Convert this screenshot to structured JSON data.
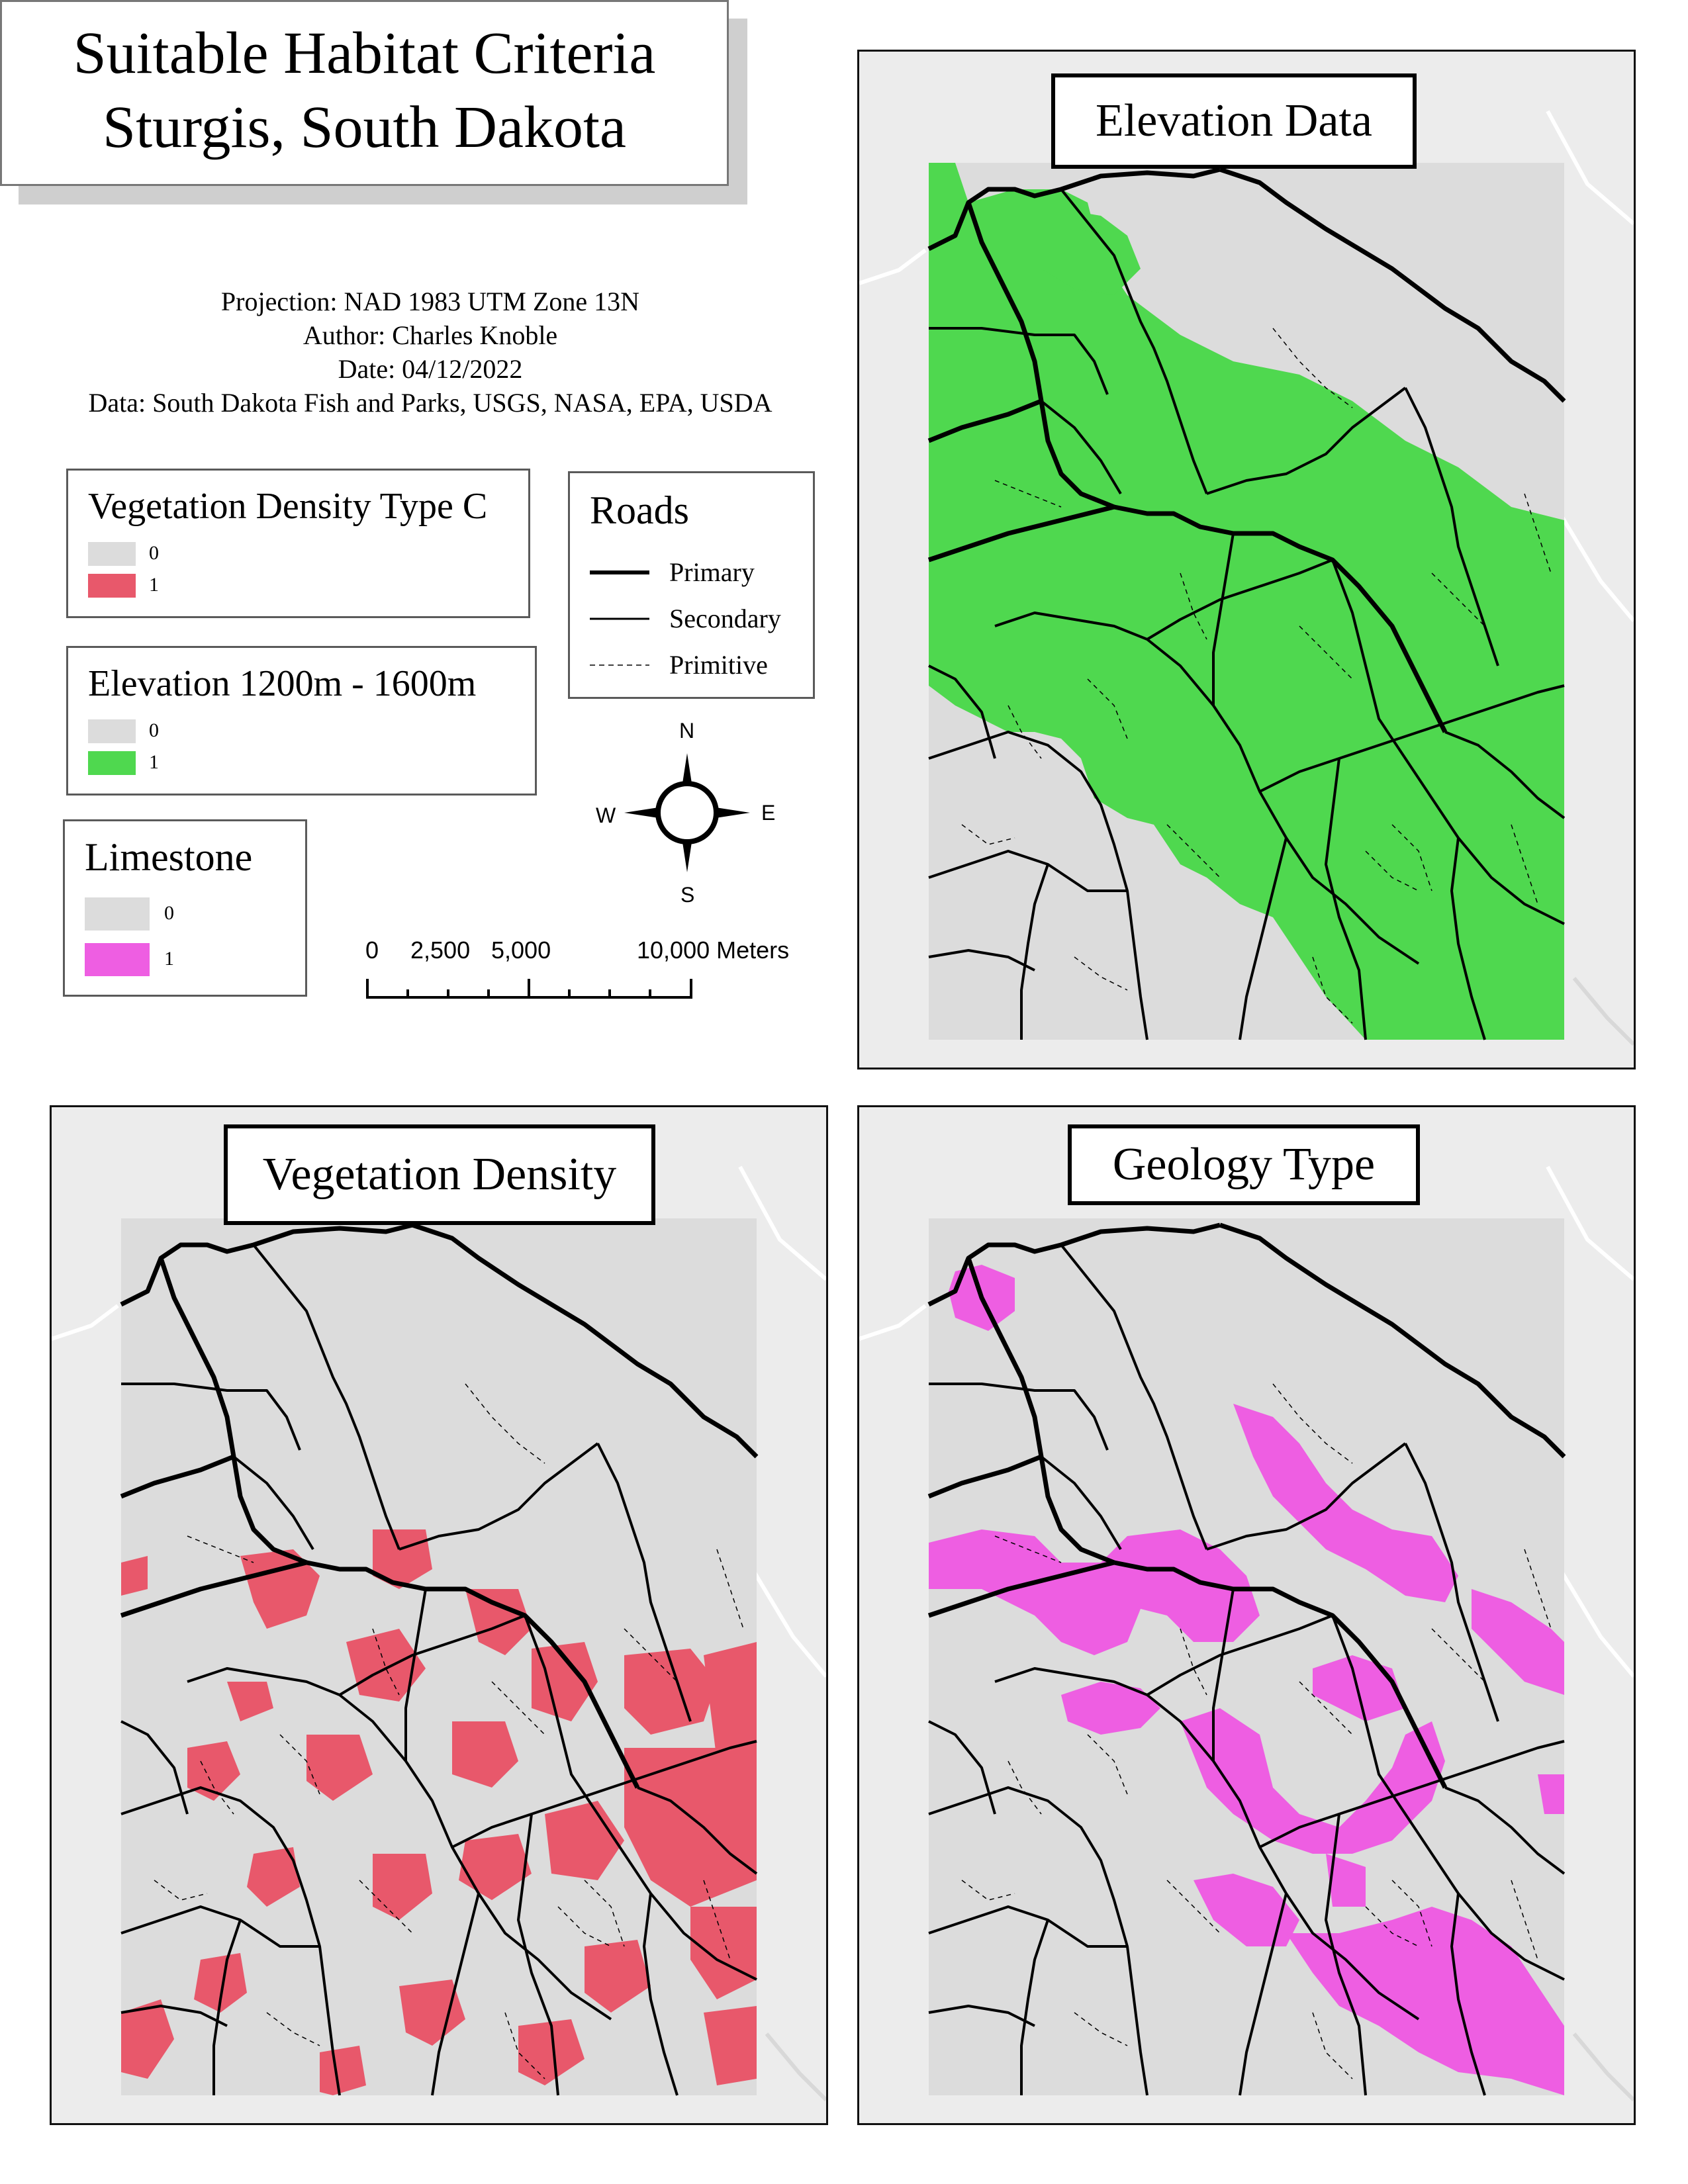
{
  "title": {
    "line1": "Suitable Habitat Criteria",
    "line2": "Sturgis, South Dakota"
  },
  "meta": {
    "projection": "Projection: NAD 1983 UTM Zone 13N",
    "author": "Author: Charles Knoble",
    "date": "Date: 04/12/2022",
    "data": "Data: South Dakota Fish and Parks, USGS, NASA, EPA, USDA"
  },
  "legends": {
    "vegetation": {
      "title": "Vegetation Density Type C",
      "items": [
        {
          "label": "0",
          "color": "#dcdcdc"
        },
        {
          "label": "1",
          "color": "#e8586b"
        }
      ]
    },
    "elevation": {
      "title": "Elevation 1200m - 1600m",
      "items": [
        {
          "label": "0",
          "color": "#dcdcdc"
        },
        {
          "label": "1",
          "color": "#4fd84f"
        }
      ]
    },
    "limestone": {
      "title": "Limestone",
      "items": [
        {
          "label": "0",
          "color": "#dcdcdc"
        },
        {
          "label": "1",
          "color": "#ee5ee2"
        }
      ]
    },
    "roads": {
      "title": "Roads",
      "items": [
        {
          "label": "Primary",
          "style": "thick"
        },
        {
          "label": "Secondary",
          "style": "thin"
        },
        {
          "label": "Primitive",
          "style": "dashed"
        }
      ]
    }
  },
  "north_arrow": {
    "n": "N",
    "s": "S",
    "e": "E",
    "w": "W"
  },
  "scale_bar": {
    "labels": [
      "0",
      "2,500",
      "5,000",
      "10,000 Meters"
    ]
  },
  "panels": {
    "elevation": {
      "title": "Elevation Data",
      "fill": "#4fd84f"
    },
    "vegetation": {
      "title": "Vegetation Density",
      "fill": "#e8586b"
    },
    "geology": {
      "title": "Geology Type",
      "fill": "#ee5ee2"
    }
  },
  "colors": {
    "study_area": "#dcdcdc",
    "basemap": "#ececec",
    "road": "#000000"
  }
}
